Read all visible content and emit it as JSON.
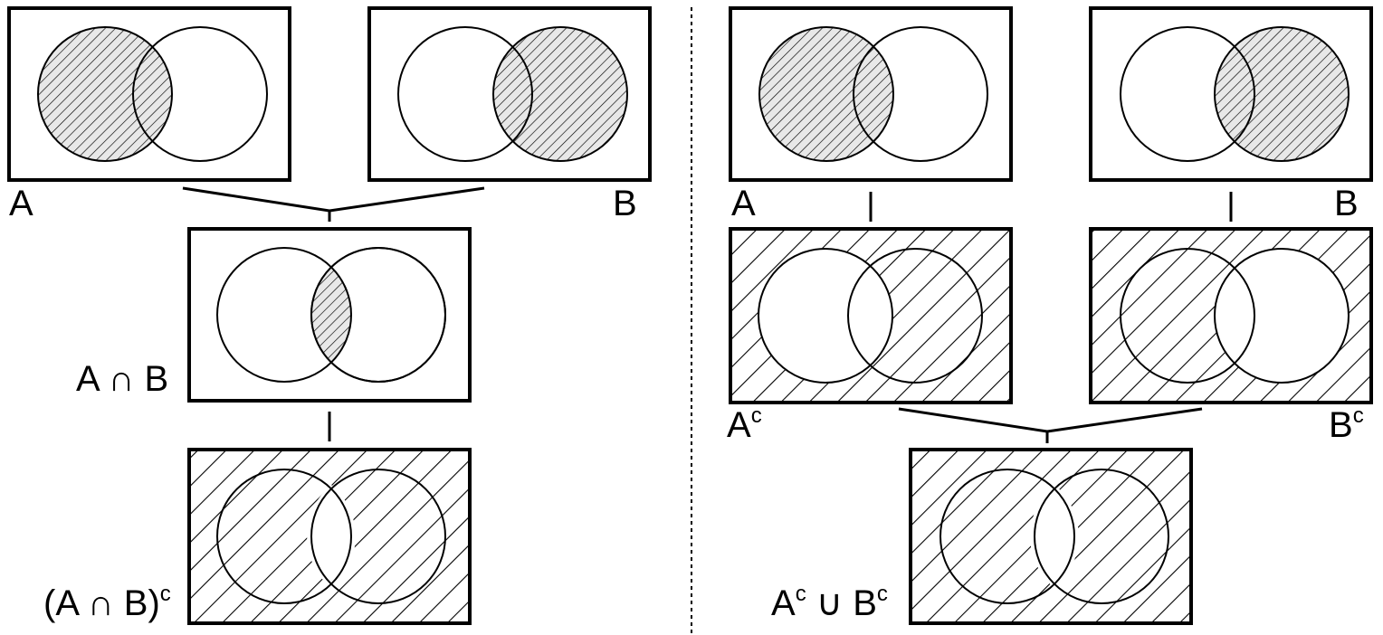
{
  "left_panel": {
    "label_a": "A",
    "label_b": "B",
    "label_intersection": {
      "base": "A ∩ B"
    },
    "label_complement": {
      "base": "(A ∩ B)",
      "sup": "c"
    }
  },
  "right_panel": {
    "label_a": "A",
    "label_b": "B",
    "label_a_complement": {
      "base": "A",
      "sup": "c"
    },
    "label_b_complement": {
      "base": "B",
      "sup": "c"
    },
    "label_union": {
      "a": "A",
      "a_sup": "c",
      "op": " ∪ ",
      "b": "B",
      "b_sup": "c"
    }
  },
  "colors": {
    "ink": "#000000",
    "background": "#ffffff",
    "shade_fill": "#d9d9d9"
  }
}
